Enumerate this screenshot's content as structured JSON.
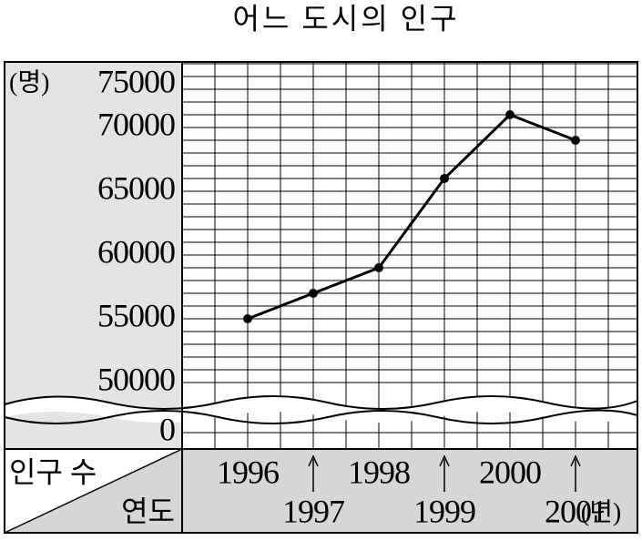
{
  "chart_data": {
    "type": "line",
    "title": "어느 도시의 인구",
    "y_unit": "(명)",
    "x_unit": "(년)",
    "corner_labels": {
      "value": "인구 수",
      "category": "연도"
    },
    "categories": [
      "1996",
      "1997",
      "1998",
      "1999",
      "2000",
      "2001"
    ],
    "series": [
      {
        "name": "인구",
        "color": "#000000",
        "values": [
          55000,
          57000,
          59000,
          66000,
          71000,
          69000
        ]
      }
    ],
    "ylim": [
      0,
      75000
    ],
    "axis_break": [
      0,
      50000
    ],
    "yticks": [
      0,
      50000,
      55000,
      60000,
      65000,
      70000,
      75000
    ],
    "minor_grid_step": 1000,
    "grid": true
  }
}
